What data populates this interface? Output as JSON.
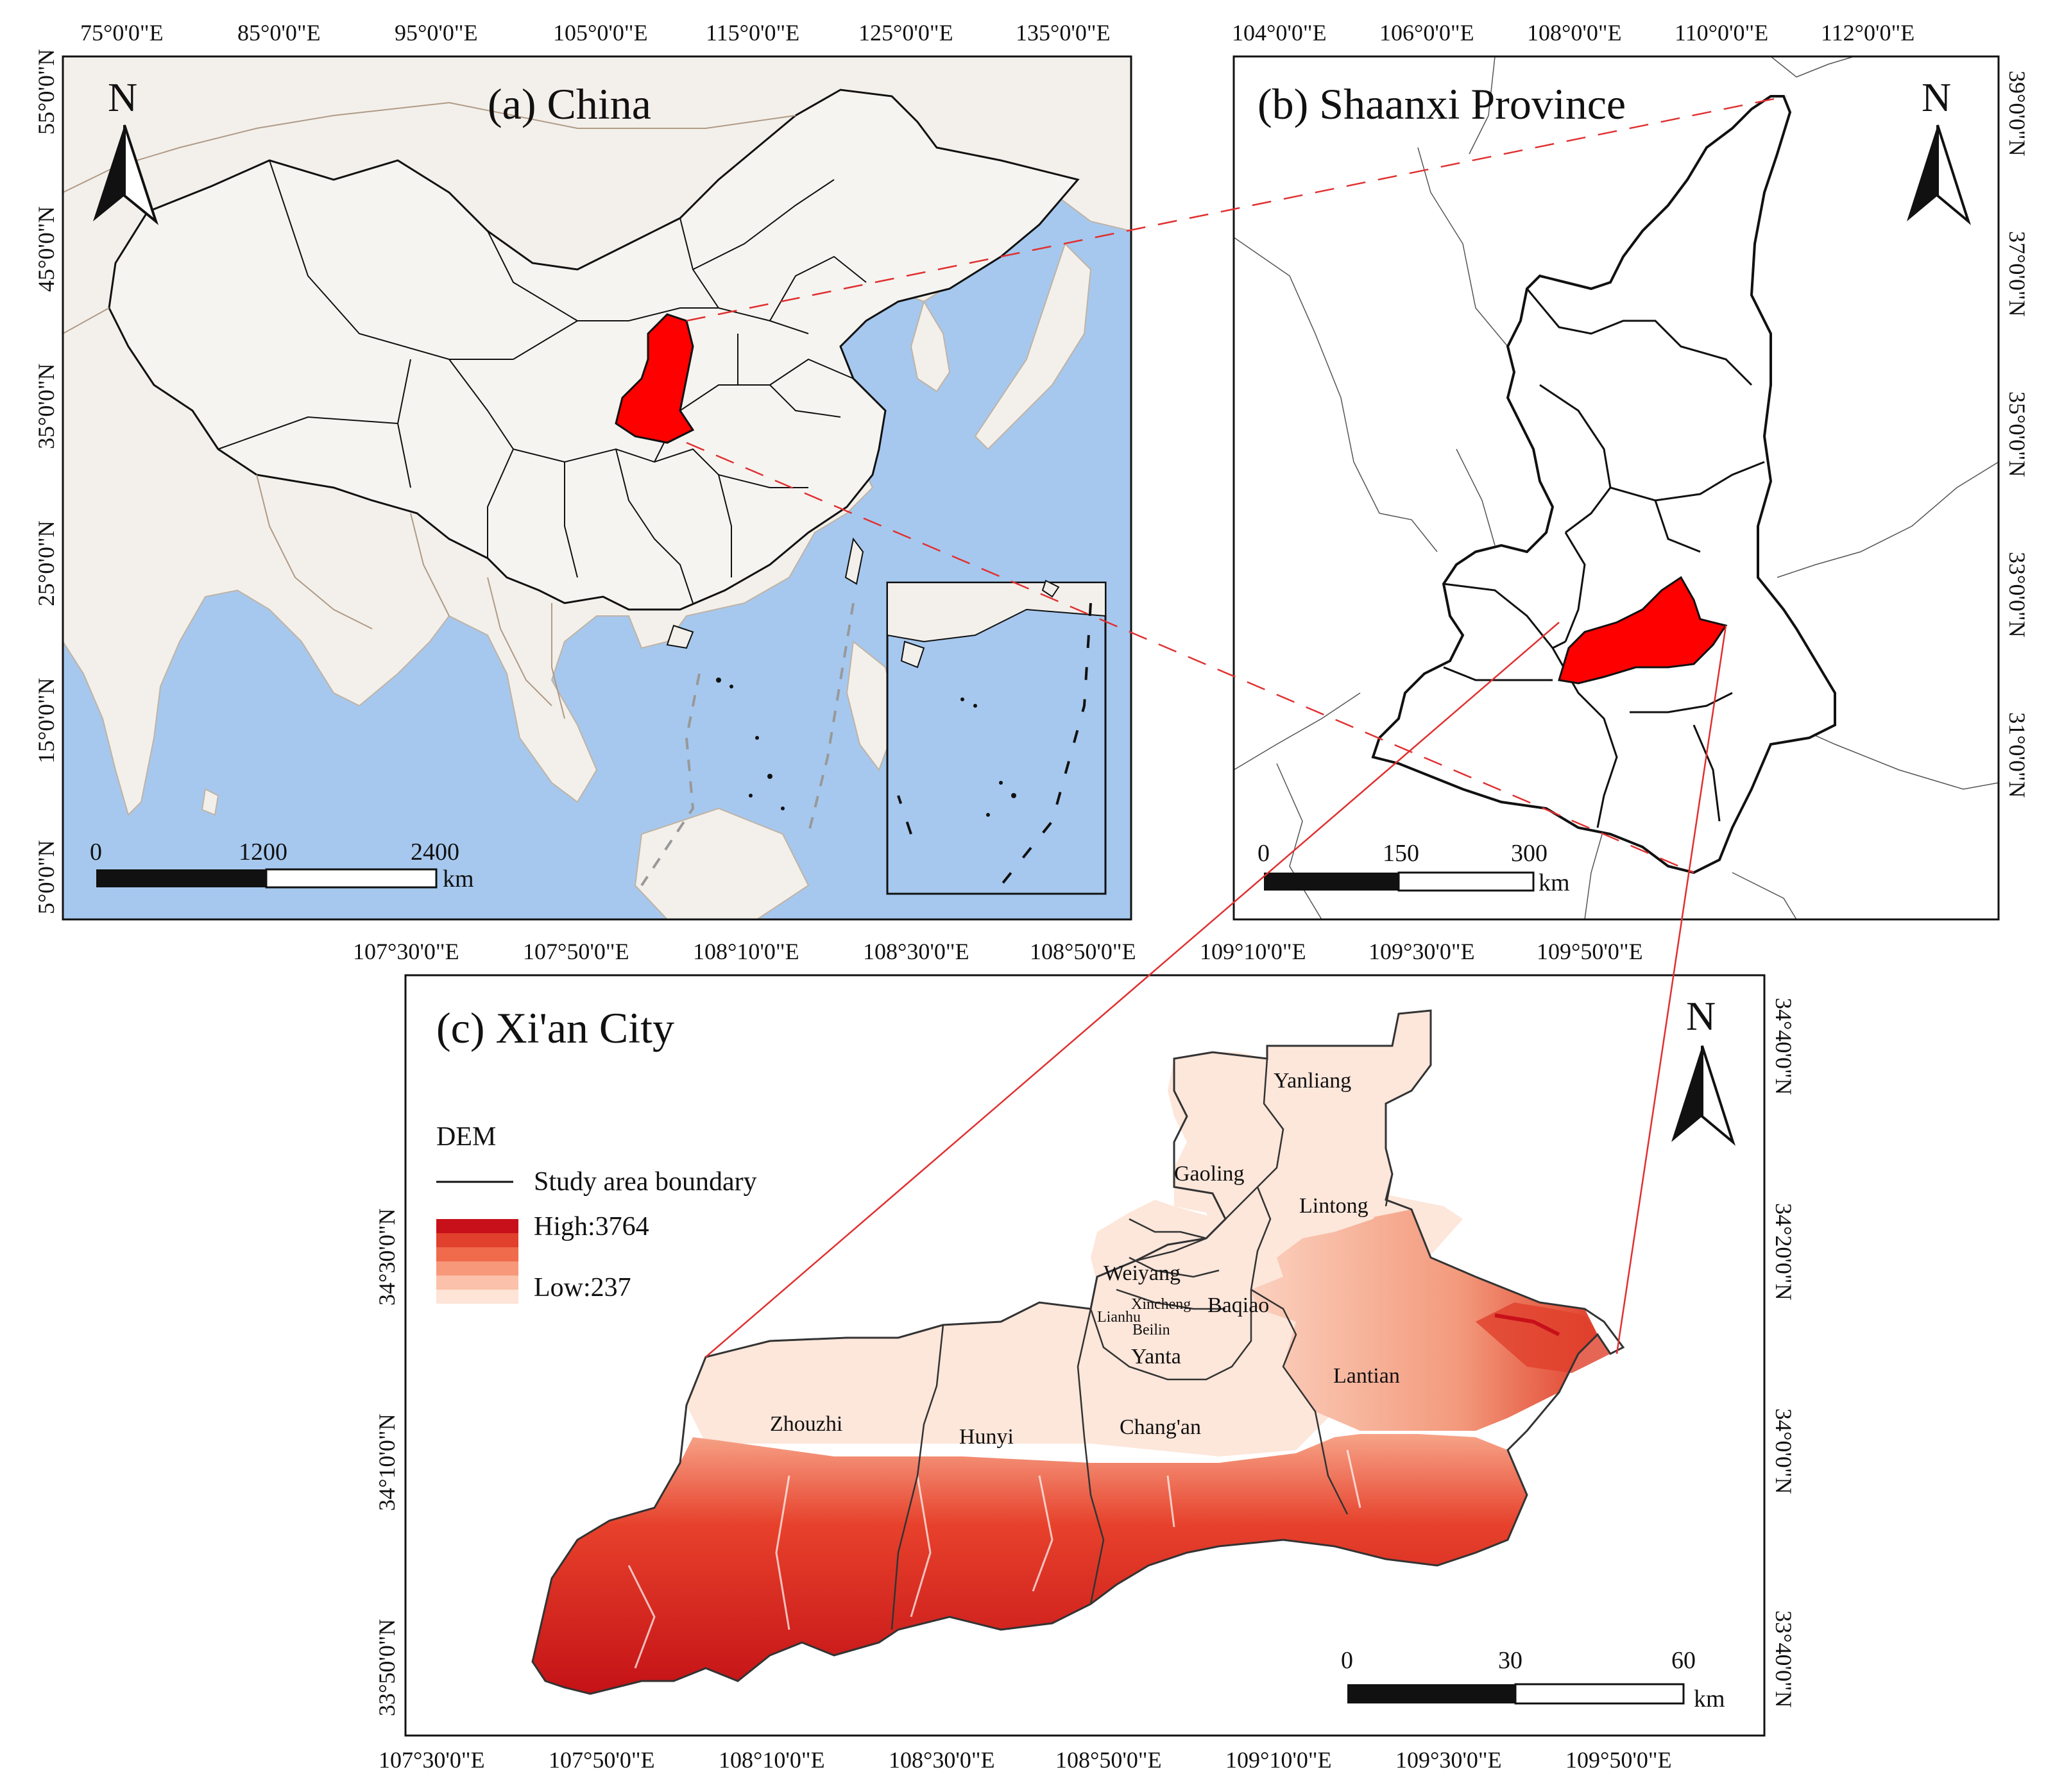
{
  "panels": {
    "a": {
      "title": "(a) China",
      "lon_ticks": [
        "75°0'0\"E",
        "85°0'0\"E",
        "95°0'0\"E",
        "105°0'0\"E",
        "115°0'0\"E",
        "125°0'0\"E",
        "135°0'0\"E"
      ],
      "lat_ticks": [
        "55°0'0\"N",
        "45°0'0\"N",
        "35°0'0\"N",
        "25°0'0\"N",
        "15°0'0\"N",
        "5°0'0\"N"
      ],
      "scale": {
        "labels": [
          "0",
          "1200",
          "2400"
        ],
        "unit": "km"
      },
      "north": "N"
    },
    "b": {
      "title": "(b) Shaanxi Province",
      "lon_ticks": [
        "104°0'0\"E",
        "106°0'0\"E",
        "108°0'0\"E",
        "110°0'0\"E",
        "112°0'0\"E"
      ],
      "lat_ticks": [
        "39°0'0\"N",
        "37°0'0\"N",
        "35°0'0\"N",
        "33°0'0\"N",
        "31°0'0\"N"
      ],
      "scale": {
        "labels": [
          "0",
          "150",
          "300"
        ],
        "unit": "km"
      },
      "north": "N"
    },
    "c": {
      "title": "(c) Xi'an City",
      "lon_ticks_top": [
        "107°30'0\"E",
        "107°50'0\"E",
        "108°10'0\"E",
        "108°30'0\"E",
        "108°50'0\"E",
        "109°10'0\"E",
        "109°30'0\"E",
        "109°50'0\"E"
      ],
      "lon_ticks_bottom": [
        "107°30'0\"E",
        "107°50'0\"E",
        "108°10'0\"E",
        "108°30'0\"E",
        "108°50'0\"E",
        "109°10'0\"E",
        "109°30'0\"E",
        "109°50'0\"E"
      ],
      "lat_ticks_left": [
        "34°30'0\"N",
        "34°10'0\"N",
        "33°50'0\"N"
      ],
      "lat_ticks_right": [
        "34°40'0\"N",
        "34°20'0\"N",
        "34°0'0\"N",
        "33°40'0\"N"
      ],
      "legend": {
        "heading": "DEM",
        "boundary_label": "Study area boundary",
        "high": "High:3764",
        "low": "Low:237",
        "ramp": [
          "#c8101a",
          "#e0402c",
          "#f06a4c",
          "#f7987a",
          "#fbc1aa",
          "#fde4d6"
        ]
      },
      "counties": {
        "yanliang": "Yanliang",
        "gaoling": "Gaoling",
        "lintong": "Lintong",
        "weiyang": "Weiyang",
        "xincheng": "Xincheng",
        "baqiao": "Baqiao",
        "lianhu": "Lianhu",
        "beilin": "Beilin",
        "yanta": "Yanta",
        "lantian": "Lantian",
        "zhouzhi": "Zhouzhi",
        "hunyi": "Hunyi",
        "changan": "Chang'an"
      },
      "scale": {
        "labels": [
          "0",
          "30",
          "60"
        ],
        "unit": "km"
      },
      "north": "N"
    }
  },
  "colors": {
    "sea": "#a6c8ee",
    "land": "#f3f0eb",
    "highlight": "#ff0000",
    "connector": "#e03030"
  }
}
